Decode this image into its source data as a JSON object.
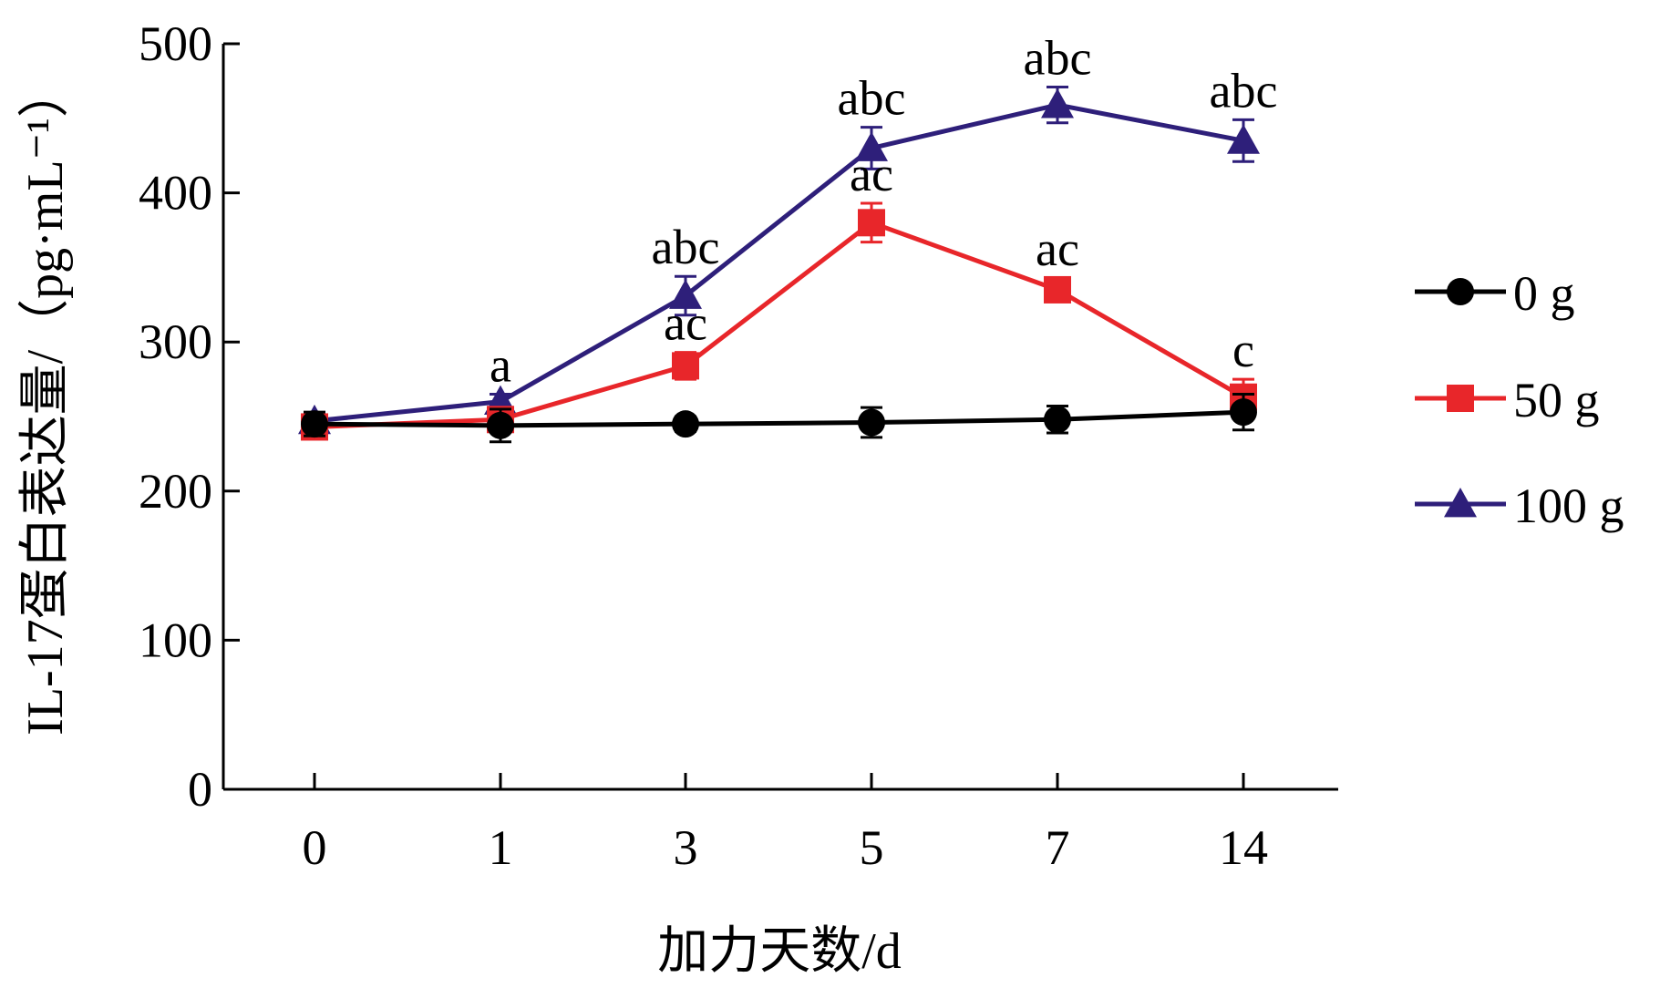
{
  "chart_data": {
    "type": "line",
    "x": [
      "0",
      "1",
      "3",
      "5",
      "7",
      "14"
    ],
    "xlabel": "加力天数/d",
    "ylabel": "IL-17蛋白表达量/（pg·mL⁻¹）",
    "ylim": [
      0,
      500
    ],
    "yticks": [
      "0",
      "100",
      "200",
      "300",
      "400",
      "500"
    ],
    "grid": false,
    "legend_position": "right",
    "series": [
      {
        "name": "0 g",
        "color": "#000000",
        "marker": "circle",
        "values": [
          245,
          244,
          245,
          246,
          248,
          253
        ],
        "errors": [
          8,
          11,
          5,
          10,
          9,
          12
        ],
        "labels": [
          "",
          "",
          "",
          "",
          "",
          ""
        ]
      },
      {
        "name": "50 g",
        "color": "#e8262a",
        "marker": "square",
        "values": [
          243,
          248,
          284,
          380,
          335,
          263
        ],
        "errors": [
          5,
          6,
          9,
          13,
          8,
          12
        ],
        "labels": [
          "",
          "",
          "ac",
          "ac",
          "ac",
          "c"
        ]
      },
      {
        "name": "100 g",
        "color": "#2e1f7a",
        "marker": "triangle",
        "values": [
          247,
          260,
          331,
          430,
          459,
          435
        ],
        "errors": [
          4,
          5,
          13,
          14,
          12,
          14
        ],
        "labels": [
          "",
          "a",
          "abc",
          "abc",
          "abc",
          "abc"
        ]
      }
    ]
  }
}
